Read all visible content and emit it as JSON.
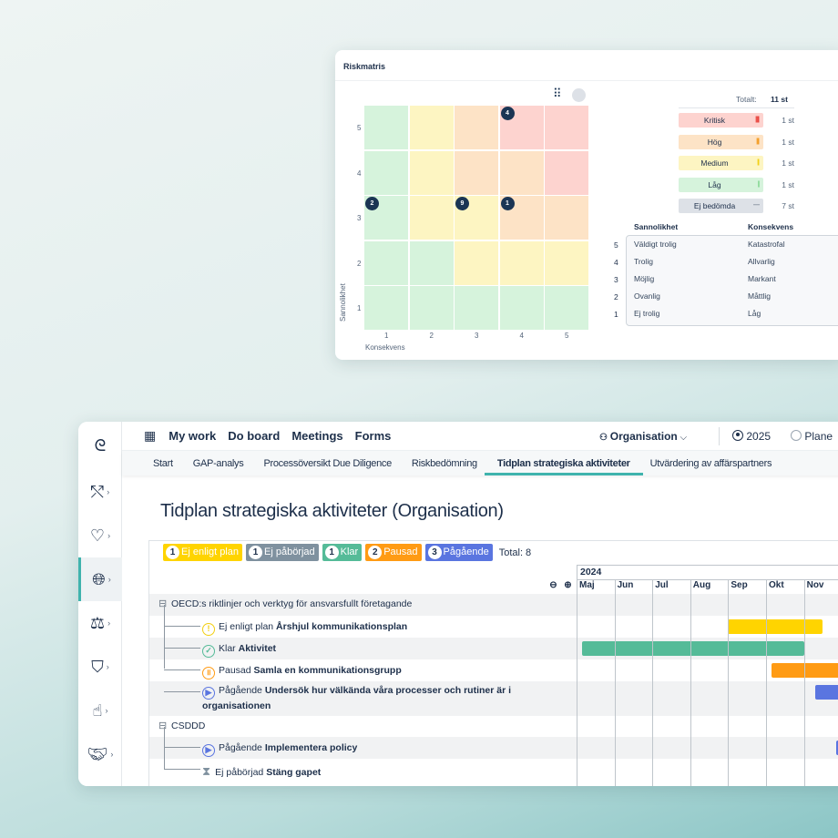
{
  "risk": {
    "title": "Riskmatris",
    "total_label": "Totalt:",
    "total_value": "11 st",
    "y_axis_label": "Sannolikhet",
    "x_axis_label": "Konsekvens",
    "y_ticks": [
      "5",
      "4",
      "3",
      "2",
      "1"
    ],
    "x_ticks": [
      "1",
      "2",
      "3",
      "4",
      "5"
    ],
    "colors": {
      "G": "#d6f3dc",
      "Y": "#fdf5c2",
      "O": "#fde3c6",
      "R": "#fdd3cf"
    },
    "matrix_rows_top_to_bottom": [
      [
        "G",
        "Y",
        "O",
        "R",
        "R"
      ],
      [
        "G",
        "Y",
        "O",
        "O",
        "R"
      ],
      [
        "G",
        "Y",
        "Y",
        "O",
        "O"
      ],
      [
        "G",
        "G",
        "Y",
        "Y",
        "Y"
      ],
      [
        "G",
        "G",
        "G",
        "G",
        "G"
      ]
    ],
    "markers": [
      {
        "likelihood": 5,
        "consequence": 4,
        "count": "4"
      },
      {
        "likelihood": 3,
        "consequence": 1,
        "count": "2"
      },
      {
        "likelihood": 3,
        "consequence": 3,
        "count": "9"
      },
      {
        "likelihood": 3,
        "consequence": 4,
        "count": "1"
      }
    ],
    "legend": [
      {
        "label": "Kritisk",
        "count": "1 st",
        "bg": "#fdd3cf",
        "mark": "||||",
        "mark_color": "#e8403a"
      },
      {
        "label": "Hög",
        "count": "1 st",
        "bg": "#fde3c6",
        "mark": "|||",
        "mark_color": "#f39a1f"
      },
      {
        "label": "Medium",
        "count": "1 st",
        "bg": "#fdf5c2",
        "mark": "||",
        "mark_color": "#f2cf12"
      },
      {
        "label": "Låg",
        "count": "1 st",
        "bg": "#d6f3dc",
        "mark": "|",
        "mark_color": "#48c25c"
      },
      {
        "label": "Ej bedömda",
        "count": "7 st",
        "bg": "#dde1e7",
        "mark": "—",
        "mark_color": "#7d8796"
      }
    ],
    "scale_headers": [
      "Sannolikhet",
      "Konsekvens"
    ],
    "scale": [
      {
        "n": "5",
        "l": "Väldigt trolig",
        "c": "Katastrofal"
      },
      {
        "n": "4",
        "l": "Trolig",
        "c": "Allvarlig"
      },
      {
        "n": "3",
        "l": "Möjlig",
        "c": "Markant"
      },
      {
        "n": "2",
        "l": "Ovanlig",
        "c": "Måttlig"
      },
      {
        "n": "1",
        "l": "Ej trolig",
        "c": "Låg"
      }
    ]
  },
  "nav": {
    "items": [
      "My work",
      "Do board",
      "Meetings",
      "Forms"
    ],
    "org": "Organisation",
    "year": "2025",
    "plan": "Plane"
  },
  "sidebar": [
    "logo",
    "route-icon",
    "heart-icon",
    "globe-search-icon",
    "scales-icon",
    "shield-lock-icon",
    "hand-heart-icon",
    "handshake-icon"
  ],
  "tabs": [
    "Start",
    "GAP-analys",
    "Processöversikt Due Diligence",
    "Riskbedömning",
    "Tidplan strategiska aktiviteter",
    "Utvärdering av affärspartners"
  ],
  "active_tab": 4,
  "page_title": "Tidplan strategiska aktiviteter (Organisation)",
  "status": [
    {
      "n": "1",
      "label": "Ej enligt plan",
      "color": "#ffd400"
    },
    {
      "n": "1",
      "label": "Ej påbörjad",
      "color": "#7f919f"
    },
    {
      "n": "1",
      "label": "Klar",
      "color": "#55bb98"
    },
    {
      "n": "2",
      "label": "Pausad",
      "color": "#ff9b14"
    },
    {
      "n": "3",
      "label": "Pågående",
      "color": "#5a75e0"
    }
  ],
  "total": "Total: 8",
  "year": "2024",
  "months": [
    "Maj",
    "Jun",
    "Jul",
    "Aug",
    "Sep",
    "Okt",
    "Nov"
  ],
  "rows": [
    {
      "type": "group",
      "label": "OECD:s riktlinjer och verktyg för ansvarsfullt företagande"
    },
    {
      "type": "task",
      "status": "Ej enligt plan",
      "name": "Årshjul kommunikationsplan",
      "icon": "warning-icon",
      "start": "2024-09",
      "end": "2024-11-end",
      "color": "#ffd400"
    },
    {
      "type": "task",
      "status": "Klar",
      "name": "Aktivitet",
      "icon": "check-circle-icon",
      "start": "2024-05",
      "end": "2024-11",
      "color": "#55bb98"
    },
    {
      "type": "task",
      "status": "Pausad",
      "name": "Samla en kommunikationsgrupp",
      "icon": "pause-icon",
      "start": "2024-10",
      "end": "2024-12+",
      "color": "#ff9b14"
    },
    {
      "type": "task",
      "status": "Pågående",
      "name": "Undersök hur välkända våra processer och rutiner är i organisationen",
      "icon": "play-icon",
      "start": "2024-11",
      "end": "2024-12+",
      "color": "#5a75e0"
    },
    {
      "type": "group",
      "label": "CSDDD"
    },
    {
      "type": "task",
      "status": "Pågående",
      "name": "Implementera policy",
      "icon": "play-icon",
      "start": "2024-12",
      "end": "2024-12+",
      "color": "#5a75e0"
    },
    {
      "type": "task",
      "status": "Ej påbörjad",
      "name": "Stäng gapet",
      "icon": "hourglass-icon"
    }
  ]
}
